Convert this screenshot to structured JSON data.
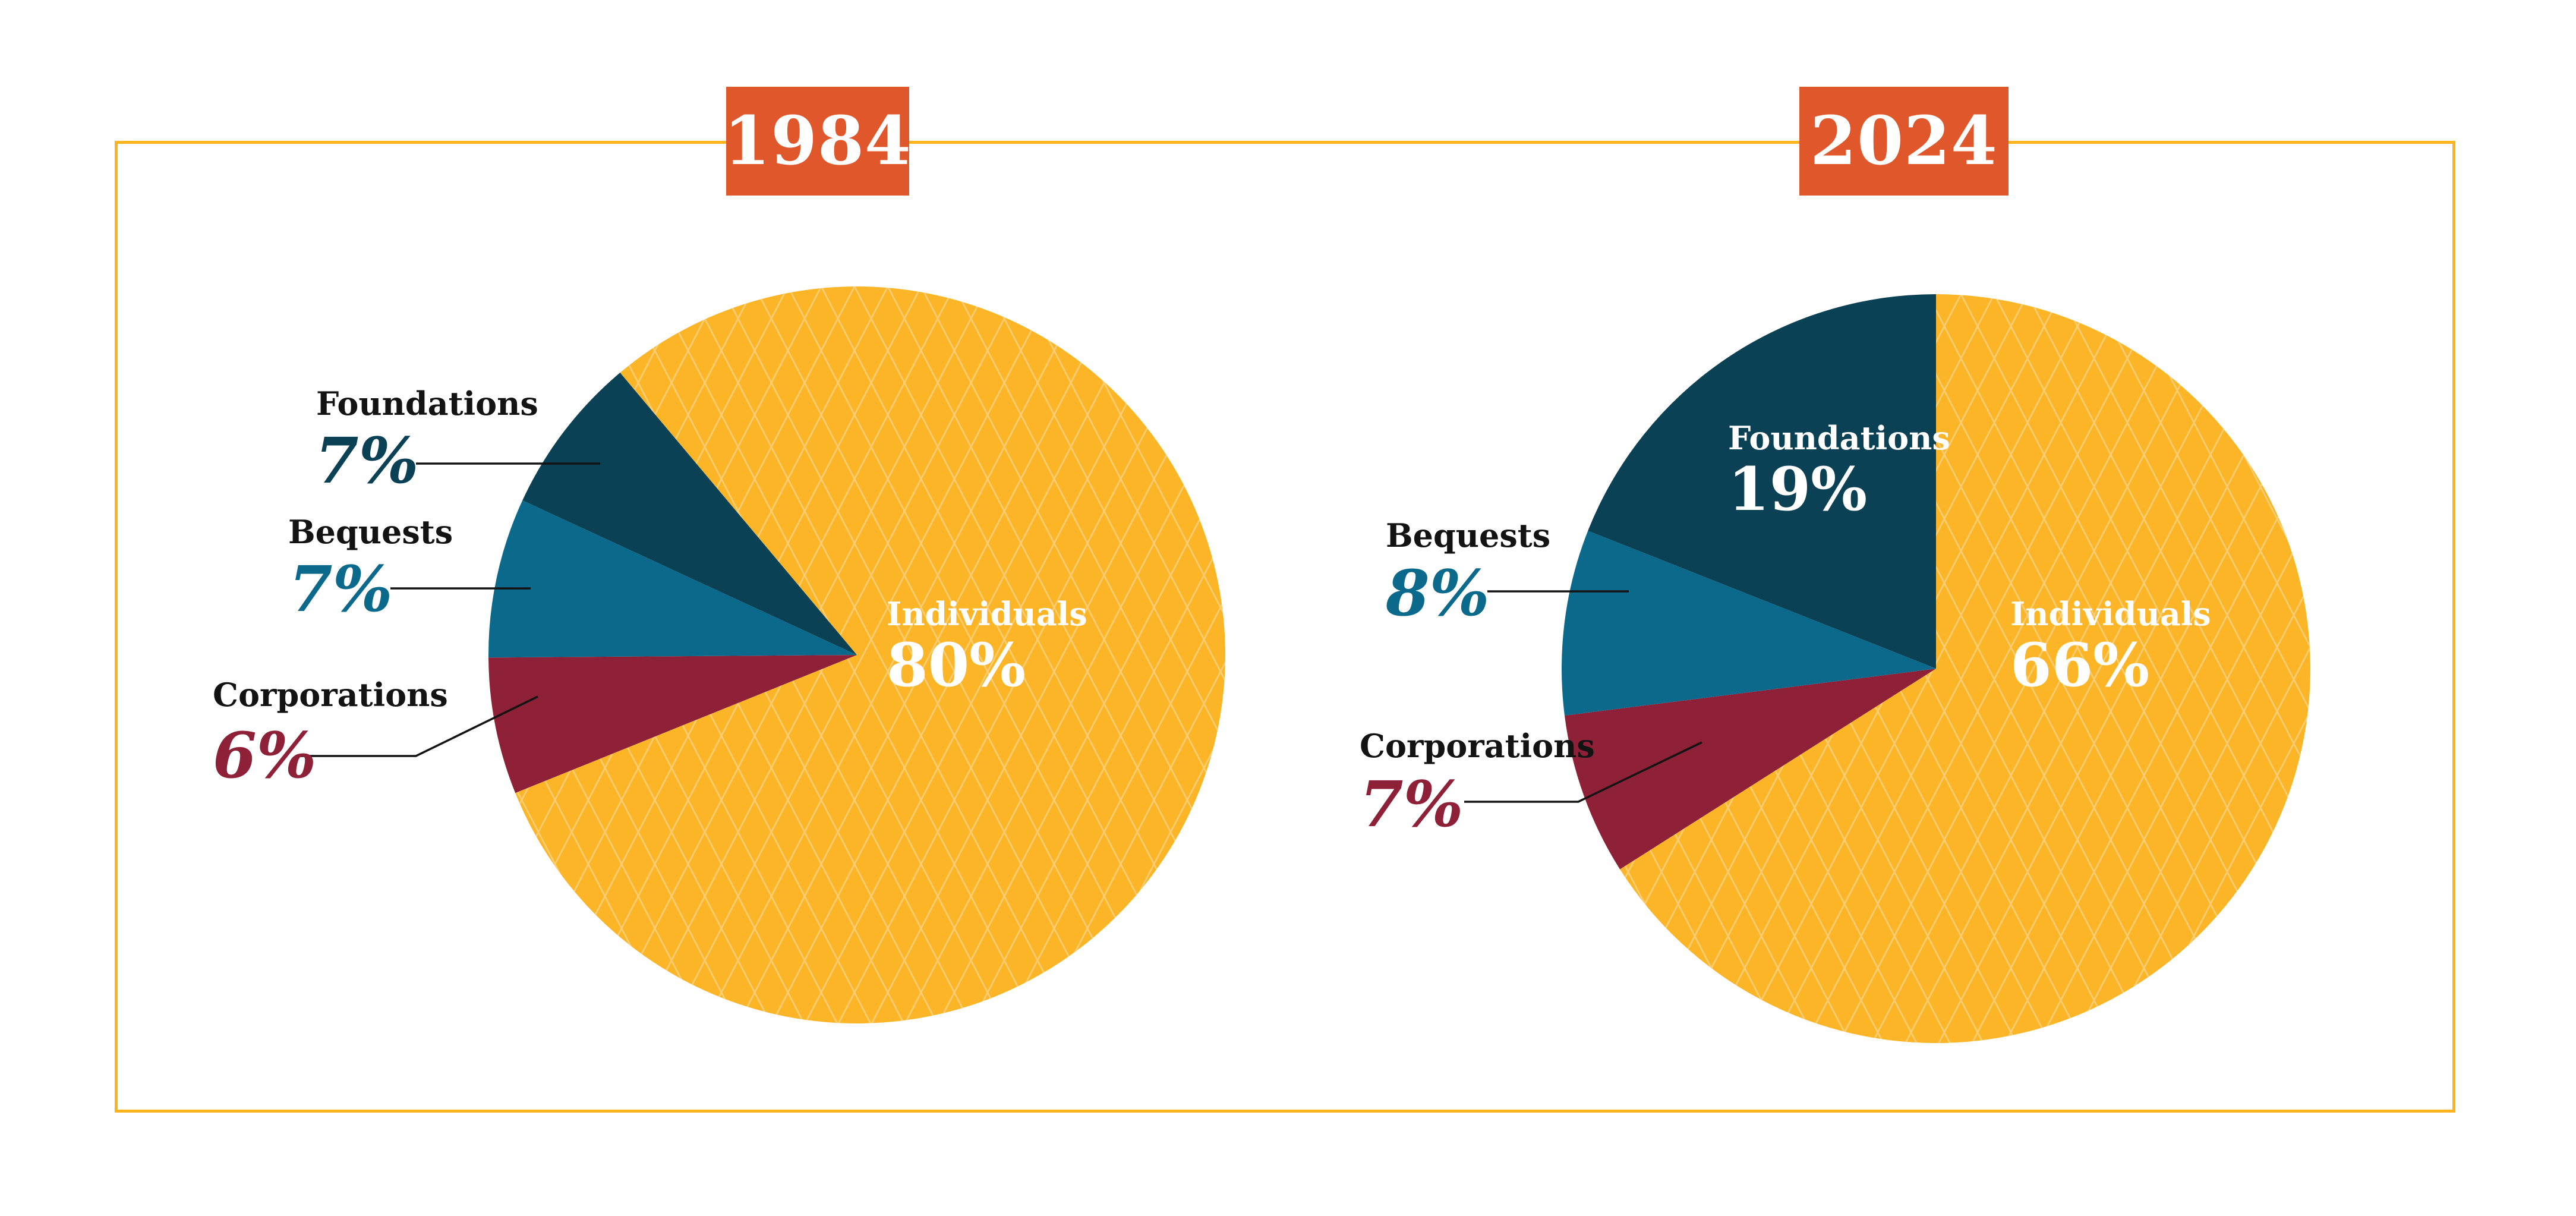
{
  "palette": {
    "background": "#FFFFFF",
    "frame_border": "#FBB41D",
    "header_bg": "#E0572B",
    "header_text": "#FFFFFF",
    "leader_line": "#131313",
    "label_text": "#131313",
    "pattern_line": "#FCD383",
    "individuals_color": "#FBB527",
    "foundations_color": "#0A4155",
    "bequests_color": "#0B6A8B",
    "corporations_color": "#8E2138"
  },
  "chart_data": [
    {
      "type": "pie",
      "title": "1984",
      "legend_position": "outside-left",
      "start_angle_deg": 320,
      "slices": [
        {
          "label": "Individuals",
          "value": 80,
          "pct_label": "80%",
          "color": "#FBB527",
          "patterned": true,
          "label_placement": "inside"
        },
        {
          "label": "Corporations",
          "value": 6,
          "pct_label": "6%",
          "color": "#8E2138",
          "patterned": false,
          "label_placement": "outside"
        },
        {
          "label": "Bequests",
          "value": 7,
          "pct_label": "7%",
          "color": "#0B6A8B",
          "patterned": false,
          "label_placement": "outside"
        },
        {
          "label": "Foundations",
          "value": 7,
          "pct_label": "7%",
          "color": "#0A4155",
          "patterned": false,
          "label_placement": "outside"
        }
      ]
    },
    {
      "type": "pie",
      "title": "2024",
      "legend_position": "outside-left",
      "start_angle_deg": 0,
      "slices": [
        {
          "label": "Individuals",
          "value": 66,
          "pct_label": "66%",
          "color": "#FBB527",
          "patterned": true,
          "label_placement": "inside"
        },
        {
          "label": "Corporations",
          "value": 7,
          "pct_label": "7%",
          "color": "#8E2138",
          "patterned": false,
          "label_placement": "outside"
        },
        {
          "label": "Bequests",
          "value": 8,
          "pct_label": "8%",
          "color": "#0B6A8B",
          "patterned": false,
          "label_placement": "outside"
        },
        {
          "label": "Foundations",
          "value": 19,
          "pct_label": "19%",
          "color": "#0A4155",
          "patterned": false,
          "label_placement": "inside"
        }
      ]
    }
  ]
}
